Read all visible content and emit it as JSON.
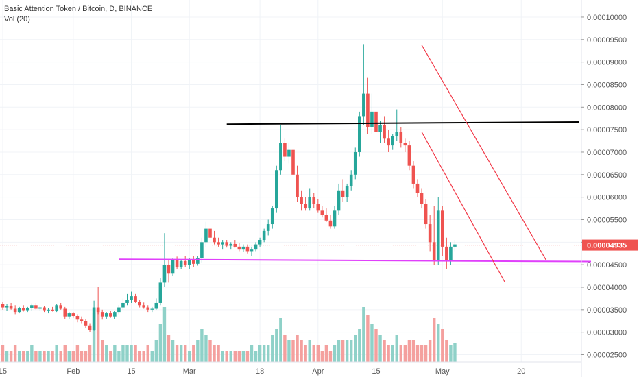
{
  "chart_data": {
    "type": "candlestick",
    "title": "Basic Attention Token / Bitcoin, D, BINANCE",
    "indicator": "Vol (20)",
    "ylim": [
      2.34e-05,
      0.0001038
    ],
    "y_ticks": [
      "0.00002500",
      "0.00003000",
      "0.00003500",
      "0.00004000",
      "0.00004500",
      "0.00005000",
      "0.00005500",
      "0.00006000",
      "0.00006500",
      "0.00007000",
      "0.00007500",
      "0.00008000",
      "0.00008500",
      "0.00009000",
      "0.00009500",
      "0.00010000"
    ],
    "x_ticks": [
      {
        "label": "15",
        "day": 0
      },
      {
        "label": "Feb",
        "day": 17
      },
      {
        "label": "15",
        "day": 31
      },
      {
        "label": "Mar",
        "day": 45
      },
      {
        "label": "18",
        "day": 62
      },
      {
        "label": "Apr",
        "day": 76
      },
      {
        "label": "15",
        "day": 90
      },
      {
        "label": "May",
        "day": 106
      },
      {
        "label": "20",
        "day": 125
      }
    ],
    "last_price": "0.00004935",
    "colors": {
      "up": "#26a69a",
      "down": "#ef5350",
      "vol_up": "#8fd1c8",
      "vol_down": "#f4a09e",
      "resistance": "#000000",
      "support": "#e040fb",
      "channel": "#f23645"
    },
    "candles": [
      [
        3.62e-05,
        3.68e-05,
        3.5e-05,
        3.55e-05,
        0.3
      ],
      [
        3.55e-05,
        3.62e-05,
        3.48e-05,
        3.58e-05,
        0.2
      ],
      [
        3.58e-05,
        3.65e-05,
        3.5e-05,
        3.52e-05,
        0.2
      ],
      [
        3.52e-05,
        3.6e-05,
        3.4e-05,
        3.45e-05,
        0.3
      ],
      [
        3.45e-05,
        3.56e-05,
        3.42e-05,
        3.54e-05,
        0.2
      ],
      [
        3.54e-05,
        3.6e-05,
        3.46e-05,
        3.49e-05,
        0.2
      ],
      [
        3.49e-05,
        3.56e-05,
        3.45e-05,
        3.53e-05,
        0.2
      ],
      [
        3.53e-05,
        3.64e-05,
        3.48e-05,
        3.6e-05,
        0.3
      ],
      [
        3.6e-05,
        3.65e-05,
        3.5e-05,
        3.52e-05,
        0.2
      ],
      [
        3.52e-05,
        3.58e-05,
        3.48e-05,
        3.55e-05,
        0.2
      ],
      [
        3.55e-05,
        3.58e-05,
        3.45e-05,
        3.49e-05,
        0.2
      ],
      [
        3.49e-05,
        3.53e-05,
        3.42e-05,
        3.5e-05,
        0.2
      ],
      [
        3.5e-05,
        3.56e-05,
        3.46e-05,
        3.48e-05,
        0.2
      ],
      [
        3.48e-05,
        3.62e-05,
        3.45e-05,
        3.6e-05,
        0.3
      ],
      [
        3.6e-05,
        3.65e-05,
        3.5e-05,
        3.52e-05,
        0.2
      ],
      [
        3.52e-05,
        3.56e-05,
        3.3e-05,
        3.35e-05,
        0.3
      ],
      [
        3.35e-05,
        3.45e-05,
        3.3e-05,
        3.42e-05,
        0.2
      ],
      [
        3.42e-05,
        3.45e-05,
        3.32e-05,
        3.36e-05,
        0.2
      ],
      [
        3.36e-05,
        3.4e-05,
        3.22e-05,
        3.28e-05,
        0.3
      ],
      [
        3.28e-05,
        3.35e-05,
        3.2e-05,
        3.25e-05,
        0.2
      ],
      [
        3.25e-05,
        3.3e-05,
        3.1e-05,
        3.15e-05,
        0.2
      ],
      [
        3.15e-05,
        3.2e-05,
        3e-05,
        3.05e-05,
        0.3
      ],
      [
        3.05e-05,
        3.7e-05,
        3.03e-05,
        3.55e-05,
        0.9
      ],
      [
        3.55e-05,
        4e-05,
        3.4e-05,
        3.45e-05,
        0.95
      ],
      [
        3.45e-05,
        3.5e-05,
        3.28e-05,
        3.35e-05,
        0.4
      ],
      [
        3.35e-05,
        3.45e-05,
        3.3e-05,
        3.42e-05,
        0.3
      ],
      [
        3.42e-05,
        3.48e-05,
        3.32e-05,
        3.35e-05,
        0.2
      ],
      [
        3.35e-05,
        3.48e-05,
        3.3e-05,
        3.45e-05,
        0.3
      ],
      [
        3.45e-05,
        3.6e-05,
        3.4e-05,
        3.55e-05,
        0.2
      ],
      [
        3.55e-05,
        3.75e-05,
        3.5e-05,
        3.65e-05,
        0.3
      ],
      [
        3.65e-05,
        3.85e-05,
        3.6e-05,
        3.72e-05,
        0.3
      ],
      [
        3.72e-05,
        3.9e-05,
        3.65e-05,
        3.8e-05,
        0.3
      ],
      [
        3.8e-05,
        3.85e-05,
        3.65e-05,
        3.68e-05,
        0.3
      ],
      [
        3.68e-05,
        3.72e-05,
        3.55e-05,
        3.6e-05,
        0.2
      ],
      [
        3.6e-05,
        3.66e-05,
        3.52e-05,
        3.55e-05,
        0.2
      ],
      [
        3.55e-05,
        3.6e-05,
        3.45e-05,
        3.5e-05,
        0.3
      ],
      [
        3.5e-05,
        3.56e-05,
        3.45e-05,
        3.52e-05,
        0.2
      ],
      [
        3.52e-05,
        3.75e-05,
        3.5e-05,
        3.65e-05,
        0.4
      ],
      [
        3.65e-05,
        4.2e-05,
        3.6e-05,
        4.1e-05,
        0.7
      ],
      [
        4.1e-05,
        5.2e-05,
        4e-05,
        4.5e-05,
        1.0
      ],
      [
        4.5e-05,
        4.6e-05,
        4.1e-05,
        4.3e-05,
        0.5
      ],
      [
        4.3e-05,
        4.65e-05,
        4.25e-05,
        4.6e-05,
        0.4
      ],
      [
        4.6e-05,
        4.68e-05,
        4.4e-05,
        4.45e-05,
        0.3
      ],
      [
        4.45e-05,
        4.62e-05,
        4.4e-05,
        4.58e-05,
        0.3
      ],
      [
        4.58e-05,
        4.7e-05,
        4.45e-05,
        4.5e-05,
        0.3
      ],
      [
        4.5e-05,
        4.65e-05,
        4.4e-05,
        4.6e-05,
        0.2
      ],
      [
        4.6e-05,
        4.7e-05,
        4.45e-05,
        4.52e-05,
        0.3
      ],
      [
        4.52e-05,
        4.7e-05,
        4.48e-05,
        4.65e-05,
        0.4
      ],
      [
        4.65e-05,
        5.1e-05,
        4.55e-05,
        5e-05,
        0.6
      ],
      [
        5e-05,
        5.45e-05,
        4.9e-05,
        5.3e-05,
        0.5
      ],
      [
        5.3e-05,
        5.45e-05,
        5.05e-05,
        5.1e-05,
        0.4
      ],
      [
        5.1e-05,
        5.25e-05,
        4.95e-05,
        5e-05,
        0.3
      ],
      [
        5e-05,
        5.1e-05,
        4.9e-05,
        4.95e-05,
        0.3
      ],
      [
        4.95e-05,
        5.05e-05,
        4.85e-05,
        5e-05,
        0.2
      ],
      [
        5e-05,
        5.05e-05,
        4.88e-05,
        4.92e-05,
        0.2
      ],
      [
        4.92e-05,
        5e-05,
        4.85e-05,
        4.96e-05,
        0.2
      ],
      [
        4.96e-05,
        5.05e-05,
        4.88e-05,
        4.9e-05,
        0.2
      ],
      [
        4.9e-05,
        4.98e-05,
        4.8e-05,
        4.85e-05,
        0.2
      ],
      [
        4.85e-05,
        4.95e-05,
        4.78e-05,
        4.9e-05,
        0.2
      ],
      [
        4.9e-05,
        4.95e-05,
        4.75e-05,
        4.8e-05,
        0.2
      ],
      [
        4.8e-05,
        4.9e-05,
        4.7e-05,
        4.85e-05,
        0.3
      ],
      [
        4.85e-05,
        5e-05,
        4.8e-05,
        4.95e-05,
        0.2
      ],
      [
        4.95e-05,
        5.1e-05,
        4.9e-05,
        5.05e-05,
        0.3
      ],
      [
        5.05e-05,
        5.3e-05,
        5e-05,
        5.25e-05,
        0.3
      ],
      [
        5.25e-05,
        5.5e-05,
        5.15e-05,
        5.4e-05,
        0.3
      ],
      [
        5.4e-05,
        5.8e-05,
        5.3e-05,
        5.75e-05,
        0.5
      ],
      [
        5.75e-05,
        6.7e-05,
        5.65e-05,
        6.6e-05,
        0.6
      ],
      [
        6.6e-05,
        7.6e-05,
        6.5e-05,
        7.2e-05,
        0.8
      ],
      [
        7.2e-05,
        7.3e-05,
        6.8e-05,
        6.9e-05,
        0.5
      ],
      [
        6.9e-05,
        7.2e-05,
        6.75e-05,
        7.05e-05,
        0.4
      ],
      [
        7.05e-05,
        7.15e-05,
        6.4e-05,
        6.5e-05,
        0.4
      ],
      [
        6.5e-05,
        6.7e-05,
        5.9e-05,
        6e-05,
        0.5
      ],
      [
        6e-05,
        6.15e-05,
        5.7e-05,
        5.85e-05,
        0.4
      ],
      [
        5.85e-05,
        6e-05,
        5.7e-05,
        5.75e-05,
        0.3
      ],
      [
        5.75e-05,
        6.2e-05,
        5.7e-05,
        6e-05,
        0.4
      ],
      [
        6e-05,
        6.1e-05,
        5.75e-05,
        5.85e-05,
        0.3
      ],
      [
        5.85e-05,
        5.95e-05,
        5.65e-05,
        5.7e-05,
        0.3
      ],
      [
        5.7e-05,
        5.8e-05,
        5.55e-05,
        5.6e-05,
        0.2
      ],
      [
        5.6e-05,
        5.75e-05,
        5.45e-05,
        5.48e-05,
        0.3
      ],
      [
        5.48e-05,
        5.6e-05,
        5.3e-05,
        5.35e-05,
        0.2
      ],
      [
        5.35e-05,
        5.8e-05,
        5.3e-05,
        5.7e-05,
        0.3
      ],
      [
        5.7e-05,
        6.3e-05,
        5.6e-05,
        6.15e-05,
        0.4
      ],
      [
        6.15e-05,
        6.4e-05,
        5.9e-05,
        6e-05,
        0.4
      ],
      [
        6e-05,
        6.3e-05,
        5.9e-05,
        6.25e-05,
        0.4
      ],
      [
        6.25e-05,
        6.6e-05,
        6.15e-05,
        6.5e-05,
        0.4
      ],
      [
        6.5e-05,
        7.1e-05,
        6.4e-05,
        7e-05,
        0.5
      ],
      [
        7e-05,
        7.9e-05,
        6.9e-05,
        7.8e-05,
        0.6
      ],
      [
        7.8e-05,
        9.4e-05,
        7.6e-05,
        8.3e-05,
        1.0
      ],
      [
        8.3e-05,
        8.65e-05,
        7.4e-05,
        7.55e-05,
        0.85
      ],
      [
        7.55e-05,
        8.3e-05,
        7.4e-05,
        7.9e-05,
        0.7
      ],
      [
        7.9e-05,
        8e-05,
        7.3e-05,
        7.45e-05,
        0.6
      ],
      [
        7.45e-05,
        7.7e-05,
        7.2e-05,
        7.6e-05,
        0.5
      ],
      [
        7.6e-05,
        7.8e-05,
        7.2e-05,
        7.3e-05,
        0.4
      ],
      [
        7.3e-05,
        7.5e-05,
        7e-05,
        7.15e-05,
        0.3
      ],
      [
        7.15e-05,
        7.4e-05,
        7.05e-05,
        7.35e-05,
        0.3
      ],
      [
        7.35e-05,
        7.95e-05,
        7.25e-05,
        7.45e-05,
        0.5
      ],
      [
        7.45e-05,
        7.55e-05,
        7.1e-05,
        7.2e-05,
        0.3
      ],
      [
        7.2e-05,
        7.3e-05,
        7e-05,
        7.15e-05,
        0.3
      ],
      [
        7.15e-05,
        7.25e-05,
        6.6e-05,
        6.7e-05,
        0.4
      ],
      [
        6.7e-05,
        6.8e-05,
        6.2e-05,
        6.3e-05,
        0.4
      ],
      [
        6.3e-05,
        6.4e-05,
        6e-05,
        6.1e-05,
        0.3
      ],
      [
        6.1e-05,
        6.2e-05,
        5.75e-05,
        5.85e-05,
        0.3
      ],
      [
        5.85e-05,
        5.95e-05,
        5.3e-05,
        5.4e-05,
        0.3
      ],
      [
        5.4e-05,
        5.6e-05,
        4.8e-05,
        5e-05,
        0.4
      ],
      [
        5e-05,
        5.8e-05,
        4.5e-05,
        4.6e-05,
        0.8
      ],
      [
        4.6e-05,
        6e-05,
        4.5e-05,
        5.7e-05,
        0.7
      ],
      [
        5.7e-05,
        5.8e-05,
        4.7e-05,
        4.9e-05,
        0.6
      ],
      [
        4.9e-05,
        5.1e-05,
        4.4e-05,
        4.6e-05,
        0.4
      ],
      [
        4.6e-05,
        5e-05,
        4.5e-05,
        4.9e-05,
        0.3
      ],
      [
        4.9e-05,
        5.05e-05,
        4.8e-05,
        4.95e-05,
        0.35
      ]
    ]
  }
}
